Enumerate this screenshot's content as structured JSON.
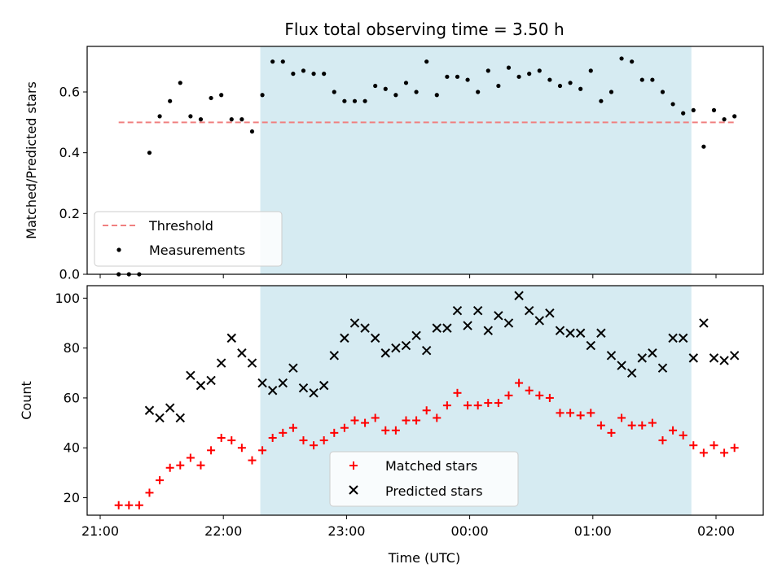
{
  "chart_data": [
    {
      "type": "scatter",
      "title": "Flux total observing time = 3.50 h",
      "xlabel": "",
      "ylabel": "Matched/Predicted stars",
      "ylim": [
        0,
        0.75
      ],
      "yticks": [
        "0.0",
        "0.2",
        "0.4",
        "0.6"
      ],
      "xlim": [
        "21:00 -0.1h",
        "02:24"
      ],
      "shaded_span": {
        "start": "22:18",
        "end": "01:48",
        "color": "#add8e6"
      },
      "legend_position": "lower-left",
      "series": [
        {
          "name": "Threshold",
          "style": "dashed-line",
          "color": "#f08080",
          "x": [
            "21:09",
            "02:09"
          ],
          "y": [
            0.5,
            0.5
          ]
        },
        {
          "name": "Measurements",
          "style": "dot",
          "color": "#000000",
          "x": [
            "21:09",
            "21:14",
            "21:19",
            "21:24",
            "21:29",
            "21:34",
            "21:39",
            "21:44",
            "21:49",
            "21:54",
            "21:59",
            "22:04",
            "22:09",
            "22:14",
            "22:19",
            "22:24",
            "22:29",
            "22:34",
            "22:39",
            "22:44",
            "22:49",
            "22:54",
            "22:59",
            "23:04",
            "23:09",
            "23:14",
            "23:19",
            "23:24",
            "23:29",
            "23:34",
            "23:39",
            "23:44",
            "23:49",
            "23:54",
            "23:59",
            "00:04",
            "00:09",
            "00:14",
            "00:19",
            "00:24",
            "00:29",
            "00:34",
            "00:39",
            "00:44",
            "00:49",
            "00:54",
            "00:59",
            "01:04",
            "01:09",
            "01:14",
            "01:19",
            "01:24",
            "01:29",
            "01:34",
            "01:39",
            "01:44",
            "01:49",
            "01:54",
            "01:59",
            "02:04",
            "02:09"
          ],
          "y": [
            0.0,
            0.0,
            0.0,
            0.4,
            0.52,
            0.57,
            0.63,
            0.52,
            0.51,
            0.58,
            0.59,
            0.51,
            0.51,
            0.47,
            0.59,
            0.7,
            0.7,
            0.66,
            0.67,
            0.66,
            0.66,
            0.6,
            0.57,
            0.57,
            0.57,
            0.62,
            0.61,
            0.59,
            0.63,
            0.6,
            0.7,
            0.59,
            0.65,
            0.65,
            0.64,
            0.6,
            0.67,
            0.62,
            0.68,
            0.65,
            0.66,
            0.67,
            0.64,
            0.62,
            0.63,
            0.61,
            0.67,
            0.57,
            0.6,
            0.71,
            0.7,
            0.64,
            0.64,
            0.6,
            0.56,
            0.53,
            0.54,
            0.42,
            0.54,
            0.51,
            0.52
          ]
        }
      ]
    },
    {
      "type": "scatter",
      "title": "",
      "xlabel": "Time (UTC)",
      "ylabel": "Count",
      "ylim": [
        13,
        105
      ],
      "yticks": [
        "20",
        "40",
        "60",
        "80",
        "100"
      ],
      "xticks": [
        "21:00",
        "22:00",
        "23:00",
        "00:00",
        "01:00",
        "02:00"
      ],
      "shaded_span": {
        "start": "22:18",
        "end": "01:48",
        "color": "#add8e6"
      },
      "legend_position": "lower-center",
      "series": [
        {
          "name": "Matched stars",
          "style": "plus",
          "color": "#ff0000",
          "x": [
            "21:09",
            "21:14",
            "21:19",
            "21:24",
            "21:29",
            "21:34",
            "21:39",
            "21:44",
            "21:49",
            "21:54",
            "21:59",
            "22:04",
            "22:09",
            "22:14",
            "22:19",
            "22:24",
            "22:29",
            "22:34",
            "22:39",
            "22:44",
            "22:49",
            "22:54",
            "22:59",
            "23:04",
            "23:09",
            "23:14",
            "23:19",
            "23:24",
            "23:29",
            "23:34",
            "23:39",
            "23:44",
            "23:49",
            "23:54",
            "23:59",
            "00:04",
            "00:09",
            "00:14",
            "00:19",
            "00:24",
            "00:29",
            "00:34",
            "00:39",
            "00:44",
            "00:49",
            "00:54",
            "00:59",
            "01:04",
            "01:09",
            "01:14",
            "01:19",
            "01:24",
            "01:29",
            "01:34",
            "01:39",
            "01:44",
            "01:49",
            "01:54",
            "01:59",
            "02:04",
            "02:09"
          ],
          "y": [
            17,
            17,
            17,
            22,
            27,
            32,
            33,
            36,
            33,
            39,
            44,
            43,
            40,
            35,
            39,
            44,
            46,
            48,
            43,
            41,
            43,
            46,
            48,
            51,
            50,
            52,
            47,
            47,
            51,
            51,
            55,
            52,
            57,
            62,
            57,
            57,
            58,
            58,
            61,
            66,
            63,
            61,
            60,
            54,
            54,
            53,
            54,
            49,
            46,
            52,
            49,
            49,
            50,
            43,
            47,
            45,
            41,
            38,
            41,
            38,
            40
          ]
        },
        {
          "name": "Predicted stars",
          "style": "x",
          "color": "#000000",
          "x": [
            "21:24",
            "21:29",
            "21:34",
            "21:39",
            "21:44",
            "21:49",
            "21:54",
            "21:59",
            "22:04",
            "22:09",
            "22:14",
            "22:19",
            "22:24",
            "22:29",
            "22:34",
            "22:39",
            "22:44",
            "22:49",
            "22:54",
            "22:59",
            "23:04",
            "23:09",
            "23:14",
            "23:19",
            "23:24",
            "23:29",
            "23:34",
            "23:39",
            "23:44",
            "23:49",
            "23:54",
            "23:59",
            "00:04",
            "00:09",
            "00:14",
            "00:19",
            "00:24",
            "00:29",
            "00:34",
            "00:39",
            "00:44",
            "00:49",
            "00:54",
            "00:59",
            "01:04",
            "01:09",
            "01:14",
            "01:19",
            "01:24",
            "01:29",
            "01:34",
            "01:39",
            "01:44",
            "01:49",
            "01:54",
            "01:59",
            "02:04",
            "02:09"
          ],
          "y": [
            55,
            52,
            56,
            52,
            69,
            65,
            67,
            74,
            84,
            78,
            74,
            66,
            63,
            66,
            72,
            64,
            62,
            65,
            77,
            84,
            90,
            88,
            84,
            78,
            80,
            81,
            85,
            79,
            88,
            88,
            95,
            89,
            95,
            87,
            93,
            90,
            101,
            95,
            91,
            94,
            87,
            86,
            86,
            81,
            86,
            77,
            73,
            70,
            76,
            78,
            72,
            84,
            84,
            76,
            90,
            76,
            75,
            77
          ]
        }
      ]
    }
  ]
}
